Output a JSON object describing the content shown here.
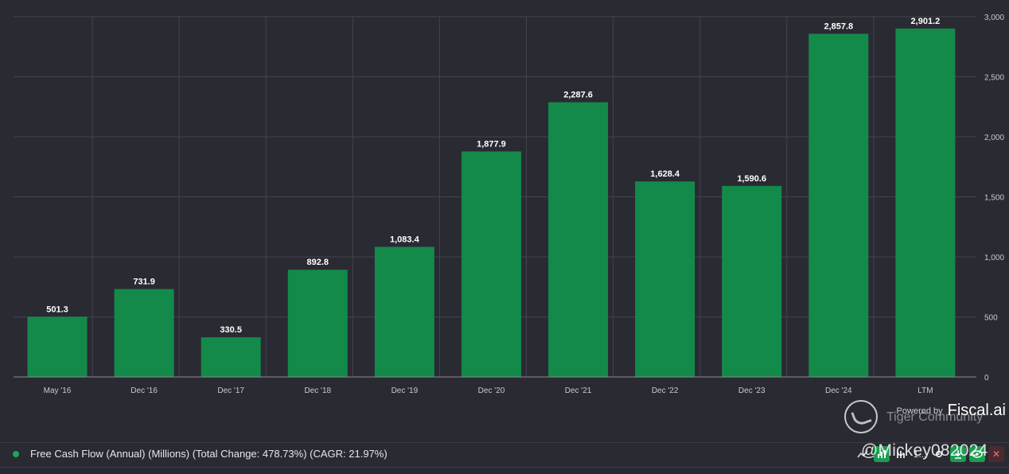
{
  "chart_data": {
    "type": "bar",
    "categories": [
      "May '16",
      "Dec '16",
      "Dec '17",
      "Dec '18",
      "Dec '19",
      "Dec '20",
      "Dec '21",
      "Dec '22",
      "Dec '23",
      "Dec '24",
      "LTM"
    ],
    "values": [
      501.3,
      731.9,
      330.5,
      892.8,
      1083.4,
      1877.9,
      2287.6,
      1628.4,
      1590.6,
      2857.8,
      2901.2
    ],
    "value_labels": [
      "501.3",
      "731.9",
      "330.5",
      "892.8",
      "1,083.4",
      "1,877.9",
      "2,287.6",
      "1,628.4",
      "1,590.6",
      "2,857.8",
      "2,901.2"
    ],
    "y_ticks": [
      0,
      500,
      1000,
      1500,
      2000,
      2500,
      3000
    ],
    "y_tick_labels": [
      "0",
      "500",
      "1,000",
      "1,500",
      "2,000",
      "2,500",
      "3,000"
    ],
    "ylim": [
      0,
      3000
    ],
    "yaxis_side": "right",
    "grid": true,
    "title": "",
    "xlabel": "",
    "ylabel": "",
    "series_name": "Free Cash Flow (Annual) (Millions) (Total Change: 478.73%) (CAGR: 21.97%)",
    "bar_color": "#138a4a"
  },
  "legend": {
    "label": "Free Cash Flow (Annual) (Millions) (Total Change: 478.73%) (CAGR: 21.97%)",
    "color": "#21a35a"
  },
  "branding": {
    "powered_by": "Powered by",
    "name": "Fiscal.ai"
  },
  "watermark": {
    "community": "Tiger Community",
    "user": "@Mickey082024"
  },
  "toolbar": {
    "line_icon": "line-chart-icon",
    "bar_icon": "bar-chart-icon",
    "more_label": "1...",
    "settings_icon": "gear-icon",
    "download_icon": "download-icon",
    "view_icon": "eye-icon",
    "close_icon": "close-icon"
  }
}
